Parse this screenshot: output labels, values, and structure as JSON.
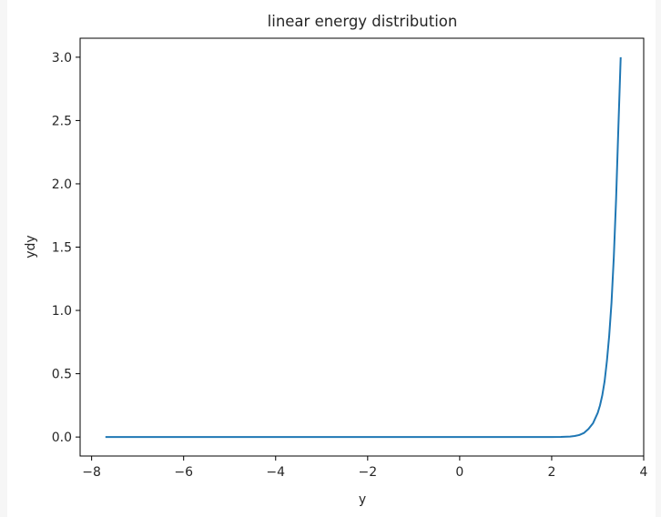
{
  "chart_data": {
    "type": "line",
    "title": "linear energy distribution",
    "xlabel": "y",
    "ylabel": "ydy",
    "xlim": [
      -8.25,
      4.0
    ],
    "ylim": [
      -0.15,
      3.15
    ],
    "xticks": [
      -8,
      -6,
      -4,
      -2,
      0,
      2,
      4
    ],
    "xtick_labels": [
      "−8",
      "−6",
      "−4",
      "−2",
      "0",
      "2",
      "4"
    ],
    "yticks": [
      0.0,
      0.5,
      1.0,
      1.5,
      2.0,
      2.5,
      3.0
    ],
    "ytick_labels": [
      "0.0",
      "0.5",
      "1.0",
      "1.5",
      "2.0",
      "2.5",
      "3.0"
    ],
    "grid": false,
    "series": [
      {
        "color": "#1f77b4",
        "x": [
          -7.7,
          -6.0,
          -4.0,
          -2.0,
          0.0,
          1.0,
          2.0,
          2.2,
          2.4,
          2.5,
          2.6,
          2.7,
          2.8,
          2.9,
          3.0,
          3.05,
          3.1,
          3.15,
          3.2,
          3.25,
          3.3,
          3.35,
          3.4,
          3.45,
          3.5
        ],
        "y": [
          0.0,
          0.0,
          0.0,
          0.0,
          0.0,
          0.0,
          0.0,
          0.001,
          0.004,
          0.008,
          0.016,
          0.032,
          0.064,
          0.11,
          0.19,
          0.25,
          0.33,
          0.44,
          0.6,
          0.8,
          1.06,
          1.42,
          1.88,
          2.45,
          3.0
        ]
      }
    ]
  }
}
